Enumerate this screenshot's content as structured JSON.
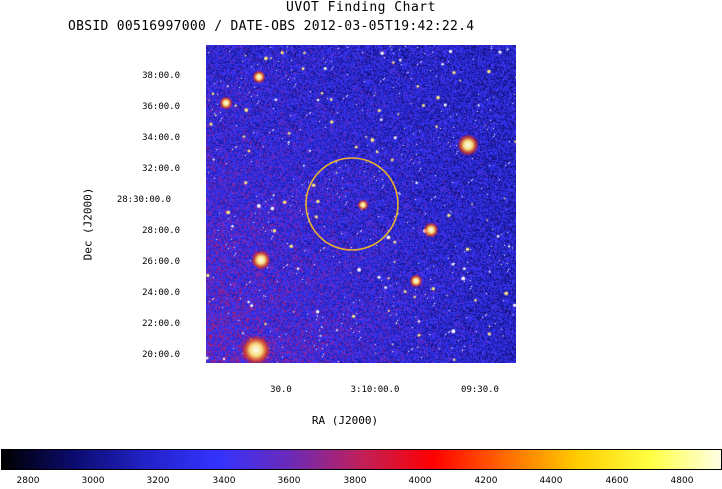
{
  "title": "UVOT Finding Chart",
  "subtitle": "OBSID 00516997000 / DATE-OBS 2012-03-05T19:42:22.4",
  "image": {
    "description_icon": "star-field-image",
    "palette": [
      "#000000",
      "#1a1aa0",
      "#3232ff",
      "#a01a6e",
      "#ff0000",
      "#ff8c00",
      "#ffff00",
      "#ffffff"
    ]
  },
  "dec_axis": {
    "label": "Dec (J2000)",
    "ticks": [
      "38:00.0",
      "36:00.0",
      "34:00.0",
      "32:00.0",
      "28:30:00.0",
      "28:00.0",
      "26:00.0",
      "24:00.0",
      "22:00.0",
      "20:00.0"
    ]
  },
  "ra_axis": {
    "label": "RA (J2000)",
    "ticks": [
      "30.0",
      "3:10:00.0",
      "09:30.0"
    ]
  },
  "colorbar": {
    "ticks": [
      "2800",
      "3000",
      "3200",
      "3400",
      "3600",
      "3800",
      "4000",
      "4200",
      "4400",
      "4600",
      "4800"
    ],
    "colors": [
      "#000000",
      "#0b0b6e",
      "#2222c8",
      "#3333ff",
      "#6b2ab8",
      "#c0205a",
      "#ff0000",
      "#ff6a00",
      "#ffcc00",
      "#ffff40",
      "#ffffe6"
    ]
  },
  "source_circle": {
    "color": "#e6b030"
  }
}
